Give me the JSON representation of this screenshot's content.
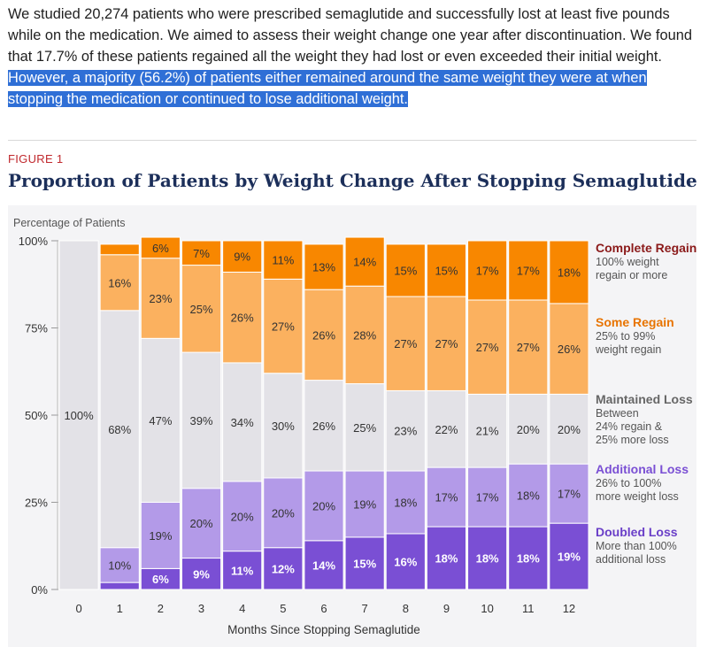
{
  "intro": {
    "text_plain": "We studied 20,274 patients who were prescribed semaglutide and successfully lost at least five pounds while on the medication. We aimed to assess their weight change one year after discontinuation. We found that 17.7% of these patients regained all the weight they had lost or even exceeded their initial weight.",
    "text_highlighted": "However, a majority (56.2%) of patients either remained around the same weight they were at when stopping the medication or continued to lose additional weight."
  },
  "figure": {
    "label": "FIGURE 1",
    "title": "Proportion of Patients by Weight Change After Stopping Semaglutide"
  },
  "colors": {
    "doubled_loss": "#7a4fd4",
    "additional_loss": "#b39ae8",
    "maintained_loss": "#e3e2e7",
    "some_regain": "#fbb15f",
    "complete_regain": "#f88700"
  },
  "chart_data": {
    "type": "bar",
    "stacked": true,
    "xlabel": "Months Since Stopping Semaglutide",
    "ylabel": "Percentage of Patients",
    "ylim": [
      0,
      100
    ],
    "yticks": [
      "0%",
      "25%",
      "50%",
      "75%",
      "100%"
    ],
    "categories": [
      "0",
      "1",
      "2",
      "3",
      "4",
      "5",
      "6",
      "7",
      "8",
      "9",
      "10",
      "11",
      "12"
    ],
    "series": [
      {
        "name": "Doubled Loss",
        "desc": [
          "More than 100%",
          "additional loss"
        ],
        "values": [
          0,
          2,
          6,
          9,
          11,
          12,
          14,
          15,
          16,
          18,
          18,
          18,
          19
        ],
        "labels": [
          "",
          "",
          "6%",
          "9%",
          "11%",
          "12%",
          "14%",
          "15%",
          "16%",
          "18%",
          "18%",
          "18%",
          "19%"
        ]
      },
      {
        "name": "Additional Loss",
        "desc": [
          "26% to 100%",
          "more weight loss"
        ],
        "values": [
          0,
          10,
          19,
          20,
          20,
          20,
          20,
          19,
          18,
          17,
          17,
          18,
          17
        ],
        "labels": [
          "",
          "10%",
          "19%",
          "20%",
          "20%",
          "20%",
          "20%",
          "19%",
          "18%",
          "17%",
          "17%",
          "18%",
          "17%"
        ]
      },
      {
        "name": "Maintained Loss",
        "desc": [
          "Between",
          "24% regain &",
          "25% more loss"
        ],
        "values": [
          100,
          68,
          47,
          39,
          34,
          30,
          26,
          25,
          23,
          22,
          21,
          20,
          20
        ],
        "labels": [
          "100%",
          "68%",
          "47%",
          "39%",
          "34%",
          "30%",
          "26%",
          "25%",
          "23%",
          "22%",
          "21%",
          "20%",
          "20%"
        ]
      },
      {
        "name": "Some Regain",
        "desc": [
          "25% to 99%",
          "weight regain"
        ],
        "values": [
          0,
          16,
          23,
          25,
          26,
          27,
          26,
          28,
          27,
          27,
          27,
          27,
          26
        ],
        "labels": [
          "",
          "16%",
          "23%",
          "25%",
          "26%",
          "27%",
          "26%",
          "28%",
          "27%",
          "27%",
          "27%",
          "27%",
          "26%"
        ]
      },
      {
        "name": "Complete Regain",
        "desc": [
          "100% weight",
          "regain or more"
        ],
        "values": [
          0,
          3,
          6,
          7,
          9,
          11,
          13,
          14,
          15,
          15,
          17,
          17,
          18
        ],
        "labels": [
          "",
          "",
          "6%",
          "7%",
          "9%",
          "11%",
          "13%",
          "14%",
          "15%",
          "15%",
          "17%",
          "17%",
          "18%"
        ]
      }
    ],
    "legend_position": "right"
  }
}
